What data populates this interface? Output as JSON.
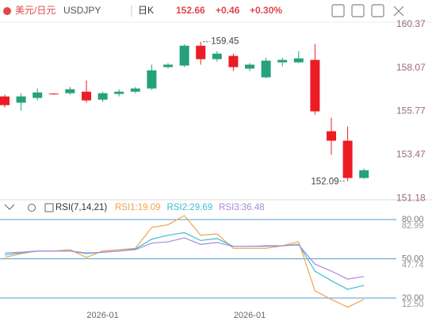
{
  "header": {
    "pair": "美元/日元",
    "symbol": "USDJPY",
    "period": "日K",
    "price": "152.66",
    "change": "+0.46",
    "change_pct": "+0.30%"
  },
  "chart_data": [
    {
      "type": "candlestick",
      "up_color": "#26a17b",
      "down_color": "#eb1c24",
      "categories": [
        null,
        null,
        null,
        null,
        null,
        null,
        "2026-01",
        null,
        null,
        null,
        null,
        null,
        null,
        null,
        null,
        "2026-01",
        null,
        null,
        null,
        null,
        null,
        null,
        null
      ],
      "open": [
        156.56,
        156.23,
        156.48,
        156.71,
        156.73,
        156.81,
        156.39,
        156.69,
        156.81,
        156.98,
        158.11,
        158.19,
        159.24,
        158.53,
        158.7,
        158.03,
        157.57,
        158.36,
        158.36,
        158.49,
        154.72,
        154.22,
        152.25
      ],
      "high": [
        156.65,
        156.73,
        156.98,
        156.73,
        157.06,
        157.4,
        156.81,
        156.94,
        157.06,
        158.24,
        158.32,
        159.32,
        159.45,
        158.95,
        158.82,
        158.32,
        158.61,
        158.61,
        158.95,
        159.32,
        155.43,
        154.97,
        152.75
      ],
      "low": [
        155.98,
        155.81,
        156.35,
        156.65,
        156.65,
        156.23,
        156.27,
        156.56,
        156.73,
        156.9,
        158.03,
        158.11,
        158.24,
        158.4,
        157.9,
        157.9,
        157.52,
        158.15,
        158.32,
        155.6,
        153.47,
        152.09,
        152.2
      ],
      "close": [
        156.1,
        156.56,
        156.77,
        156.69,
        156.94,
        156.35,
        156.73,
        156.81,
        156.98,
        157.94,
        158.24,
        159.24,
        158.53,
        158.82,
        158.11,
        158.24,
        158.45,
        158.49,
        158.57,
        155.77,
        154.22,
        152.25,
        152.66
      ],
      "ylim": [
        151.1,
        160.65
      ],
      "yticks": [
        160.37,
        158.07,
        155.77,
        153.47,
        151.18
      ],
      "grid": false
    },
    {
      "type": "line",
      "title": "RSI(7,14,21)",
      "series": [
        {
          "name": "RSI1:19.09",
          "color": "#f2a24e",
          "values": [
            51,
            54,
            56,
            56,
            57,
            51,
            56,
            57,
            58,
            74,
            76,
            83,
            68,
            69,
            58,
            58,
            58,
            60,
            63,
            25.5,
            19,
            13,
            19.09
          ]
        },
        {
          "name": "RSI2:29.69",
          "color": "#3dbfd0",
          "values": [
            53,
            54.5,
            56,
            56,
            56,
            54,
            55,
            56,
            57.5,
            65,
            68,
            70,
            64,
            65.5,
            59.5,
            59.5,
            59.5,
            60,
            61,
            40.6,
            33.3,
            26.7,
            29.69
          ]
        },
        {
          "name": "RSI3:36.48",
          "color": "#a98ad8",
          "values": [
            54.5,
            55,
            56,
            56,
            56,
            54.5,
            55,
            56,
            57,
            62,
            63,
            66,
            61,
            62.5,
            59.5,
            59.5,
            60,
            60,
            60.6,
            46,
            40.6,
            34.5,
            36.48
          ]
        }
      ],
      "ylim": [
        8.5,
        91.5
      ],
      "yticks": [
        {
          "value": 80,
          "label": "80.00"
        },
        {
          "value": 50,
          "label": "50.00"
        },
        {
          "value": 20,
          "label": "20.00"
        }
      ],
      "axis_values": [
        "82.99",
        "47.74",
        "12.50"
      ],
      "grid": true
    }
  ]
}
